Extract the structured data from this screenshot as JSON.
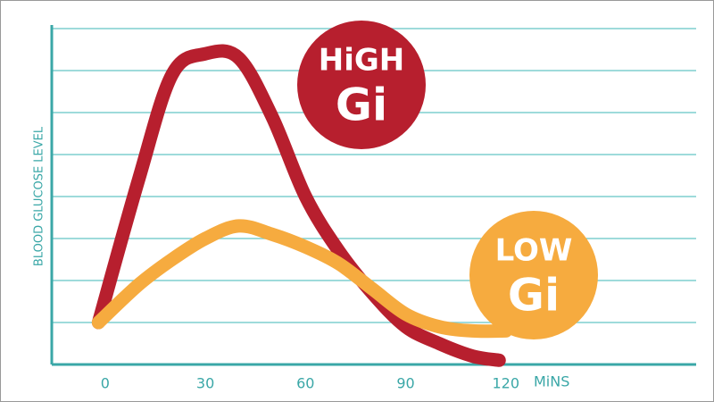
{
  "chart_data": {
    "type": "line",
    "y_label": "BLOOD GLUCOSE LEVEL",
    "x_label": "MiNS",
    "xlim": [
      -16,
      177
    ],
    "xticks": [
      0,
      30,
      60,
      90,
      120
    ],
    "ylim": [
      0,
      8
    ],
    "yticks": [
      1,
      2,
      3,
      4,
      5,
      6,
      7,
      8
    ],
    "grid": true,
    "series": [
      {
        "label_lines": [
          "HiGH",
          "Gi"
        ],
        "color": "#b71f2e",
        "x": [
          -2,
          10,
          20,
          30,
          40,
          50,
          60,
          70,
          80,
          90,
          100,
          110,
          118
        ],
        "values": [
          1.0,
          4.4,
          6.9,
          7.4,
          7.3,
          5.9,
          4.0,
          2.7,
          1.7,
          0.9,
          0.5,
          0.2,
          0.1
        ]
      },
      {
        "label_lines": [
          "LOW",
          "Gi"
        ],
        "color": "#f6ab3f",
        "x": [
          -2,
          10,
          20,
          30,
          40,
          50,
          60,
          70,
          80,
          90,
          100,
          110,
          120
        ],
        "values": [
          1.0,
          1.9,
          2.5,
          3.0,
          3.3,
          3.1,
          2.8,
          2.4,
          1.8,
          1.2,
          0.9,
          0.8,
          0.8
        ]
      }
    ]
  }
}
